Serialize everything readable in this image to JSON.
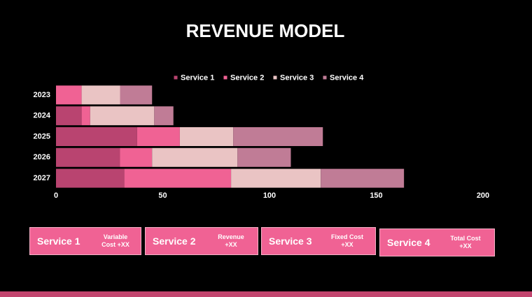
{
  "title": "REVENUE MODEL",
  "chart_data": {
    "type": "bar",
    "orientation": "horizontal",
    "stacked": true,
    "categories": [
      "2023",
      "2024",
      "2025",
      "2026",
      "2027"
    ],
    "series": [
      {
        "name": "Service 1",
        "color": "#b94470",
        "values": [
          0,
          12,
          38,
          30,
          32
        ]
      },
      {
        "name": "Service 2",
        "color": "#f06294",
        "values": [
          12,
          4,
          20,
          15,
          50
        ]
      },
      {
        "name": "Service 3",
        "color": "#eac4c4",
        "values": [
          18,
          30,
          25,
          40,
          42
        ]
      },
      {
        "name": "Service 4",
        "color": "#c07c96",
        "values": [
          15,
          9,
          42,
          25,
          39
        ]
      }
    ],
    "xlim": [
      0,
      200
    ],
    "xticks": [
      0,
      50,
      100,
      150,
      200
    ],
    "legend": "top"
  },
  "cards": [
    {
      "title": "Service 1",
      "note": "Variable Cost +XX"
    },
    {
      "title": "Service 2",
      "note": "Revenue +XX"
    },
    {
      "title": "Service 3",
      "note": "Fixed Cost +XX"
    },
    {
      "title": "Service 4",
      "note": "Total Cost +XX"
    }
  ]
}
